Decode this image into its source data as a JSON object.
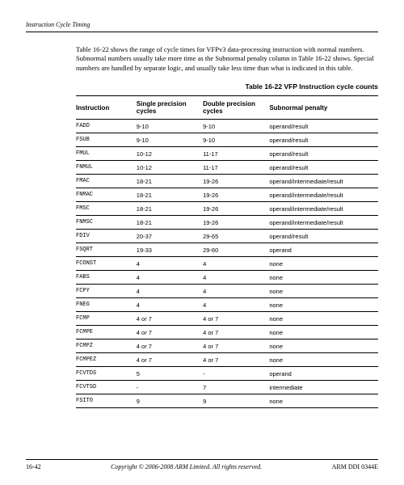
{
  "header": {
    "title": "Instruction Cycle Timing"
  },
  "intro": "Table 16-22 shows the range of cycle times for VFPv3 data-processing instruction with normal numbers. Subnormal numbers usually take more time as the Subnormal penalty column in Table 16-22 shows. Special numbers are handled by separate logic, and usually take less time than what is indicated in this table.",
  "table": {
    "caption": "Table 16-22 VFP Instruction cycle counts",
    "columns": [
      "Instruction",
      "Single precision cycles",
      "Double precision cycles",
      "Subnormal penalty"
    ],
    "rows": [
      [
        "FADD",
        "9-10",
        "9-10",
        "operand/result"
      ],
      [
        "FSUB",
        "9-10",
        "9-10",
        "operand/result"
      ],
      [
        "FMUL",
        "10-12",
        "11-17",
        "operand/result"
      ],
      [
        "FNMUL",
        "10-12",
        "11-17",
        "operand/result"
      ],
      [
        "FMAC",
        "18-21",
        "19-26",
        "operand/intermediate/result"
      ],
      [
        "FNMAC",
        "18-21",
        "19-26",
        "operand/intermediate/result"
      ],
      [
        "FMSC",
        "18-21",
        "19-26",
        "operand/intermediate/result"
      ],
      [
        "FNMSC",
        "18-21",
        "19-26",
        "operand/intermediate/result"
      ],
      [
        "FDIV",
        "20-37",
        "29-65",
        "operand/result"
      ],
      [
        "FSQRT",
        "19-33",
        "29-60",
        "operand"
      ],
      [
        "FCONST",
        "4",
        "4",
        "none"
      ],
      [
        "FABS",
        "4",
        "4",
        "none"
      ],
      [
        "FCPY",
        "4",
        "4",
        "none"
      ],
      [
        "FNEG",
        "4",
        "4",
        "none"
      ],
      [
        "FCMP",
        "4 or 7",
        "4 or 7",
        "none"
      ],
      [
        "FCMPE",
        "4 or 7",
        "4 or 7",
        "none"
      ],
      [
        "FCMPZ",
        "4 or 7",
        "4 or 7",
        "none"
      ],
      [
        "FCMPEZ",
        "4 or 7",
        "4 or 7",
        "none"
      ],
      [
        "FCVTDS",
        "5",
        "-",
        "operand"
      ],
      [
        "FCVTSD",
        "-",
        "7",
        "intermediate"
      ],
      [
        "FSITO",
        "9",
        "9",
        "none"
      ]
    ]
  },
  "footer": {
    "left": "16-42",
    "center": "Copyright © 2006-2008 ARM Limited. All rights reserved.",
    "right": "ARM DDI 0344E"
  }
}
